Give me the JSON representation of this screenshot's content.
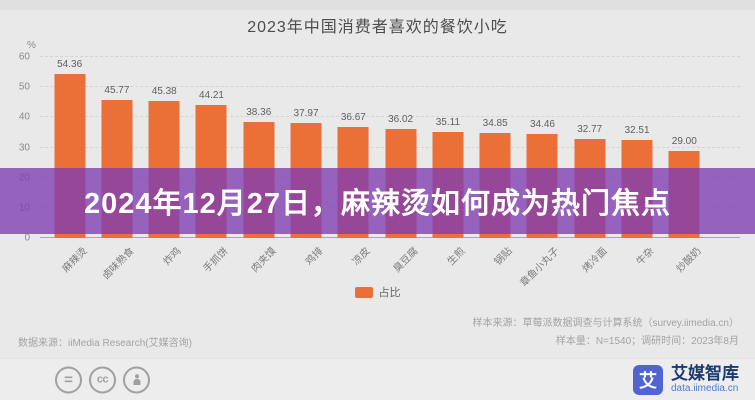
{
  "overlay": {
    "headline": "2024年12月27日，麻辣烫如何成为热门焦点"
  },
  "chart_data": {
    "type": "bar",
    "title": "2023年中国消费者喜欢的餐饮小吃",
    "categories": [
      "麻辣烫",
      "卤味熟食",
      "炸鸡",
      "手抓饼",
      "肉夹馍",
      "鸡排",
      "凉皮",
      "臭豆腐",
      "生煎",
      "锅贴",
      "章鱼小丸子",
      "烤冷面",
      "牛杂",
      "炒酸奶"
    ],
    "values": [
      54.36,
      45.77,
      45.38,
      44.21,
      38.36,
      37.97,
      36.67,
      36.02,
      35.11,
      34.85,
      34.46,
      32.77,
      32.51,
      29.0
    ],
    "ylabel": "%",
    "xlabel": "",
    "ylim": [
      0,
      60
    ],
    "yticks": [
      0,
      10,
      20,
      30,
      40,
      50,
      60
    ],
    "grid": true,
    "legend": [
      "占比"
    ],
    "legend_position": "bottom",
    "bar_color": "#EA7038"
  },
  "legend": {
    "label": "占比"
  },
  "footnotes": {
    "left": "数据来源：iiMedia Research(艾媒咨询)",
    "right_line1": "样本来源：草莓派数据调查与计算系统（survey.iimedia.cn）",
    "right_line2": "样本量：N=1540；调研时间：2023年8月"
  },
  "footer": {
    "icons": [
      "equals-icon",
      "cc-icon",
      "person-icon"
    ],
    "equals_glyph": "=",
    "cc_glyph": "cc",
    "brand_glyph": "艾",
    "brand_name": "艾媒智库",
    "brand_url": "data.iimedia.cn"
  },
  "colors": {
    "bar": "#EA7038",
    "banner": "#7D3CB2",
    "banner_opacity": 0.78,
    "background": "#E9E9E9",
    "brand_blue": "#5165D1"
  }
}
